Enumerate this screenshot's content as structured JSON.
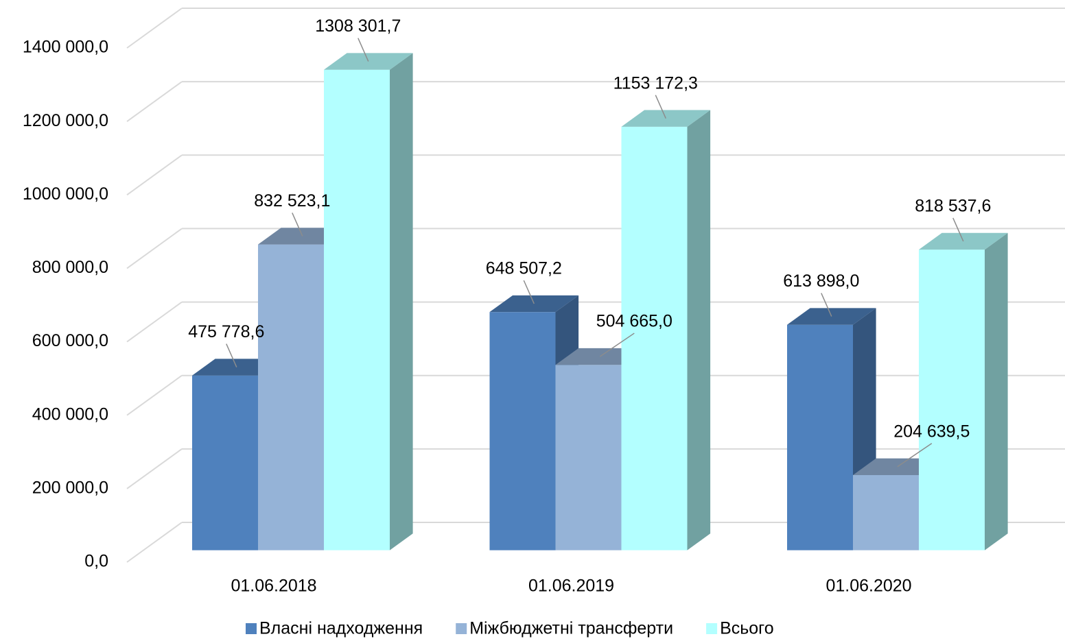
{
  "chart_data": {
    "type": "bar3d",
    "categories": [
      "01.06.2018",
      "01.06.2019",
      "01.06.2020"
    ],
    "series": [
      {
        "name": "Власні надходження",
        "color": "#4f81bd",
        "values": [
          475778.6,
          648507.2,
          613898.0
        ],
        "value_labels": [
          "475 778,6",
          "648 507,2",
          "613 898,0"
        ]
      },
      {
        "name": "Міжбюджетні трансферти",
        "color": "#95b3d7",
        "values": [
          832523.1,
          504665.0,
          204639.5
        ],
        "value_labels": [
          "832 523,1",
          "504 665,0",
          "204 639,5"
        ]
      },
      {
        "name": "Всього",
        "color": "#b3ffff",
        "values": [
          1308301.7,
          1153172.3,
          818537.6
        ],
        "value_labels": [
          "1308 301,7",
          "1153 172,3",
          "818 537,6"
        ]
      }
    ],
    "ylim": [
      0,
      1400000
    ],
    "yticks": [
      {
        "value": 0,
        "label": "0,0"
      },
      {
        "value": 200000,
        "label": "200 000,0"
      },
      {
        "value": 400000,
        "label": "400 000,0"
      },
      {
        "value": 600000,
        "label": "600 000,0"
      },
      {
        "value": 800000,
        "label": "800 000,0"
      },
      {
        "value": 1000000,
        "label": "1000 000,0"
      },
      {
        "value": 1200000,
        "label": "1200 000,0"
      },
      {
        "value": 1400000,
        "label": "1400 000,0"
      }
    ],
    "grid": true,
    "legend": "bottom"
  }
}
